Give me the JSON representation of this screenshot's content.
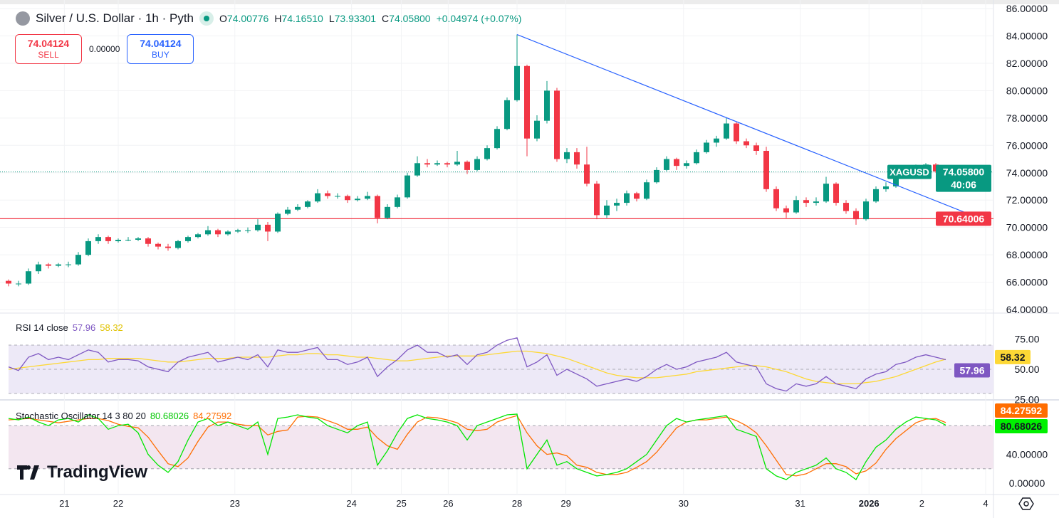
{
  "header": {
    "title": "Silver / U.S. Dollar · 1h · Pyth",
    "open_label": "O",
    "open": "74.00776",
    "high_label": "H",
    "high": "74.16510",
    "low_label": "L",
    "low": "73.93301",
    "close_label": "C",
    "close": "74.05800",
    "change": "+0.04974 (+0.07%)"
  },
  "trade": {
    "sell_price": "74.04124",
    "sell_label": "SELL",
    "spread": "0.00000",
    "buy_price": "74.04124",
    "buy_label": "BUY"
  },
  "price_badge": {
    "symbol": "XAGUSD",
    "price": "74.05800",
    "countdown": "40:06"
  },
  "level_badge": "70.64006",
  "rsi_legend": {
    "name": "RSI 14 close",
    "rsi": "57.96",
    "ma": "58.32"
  },
  "stoch_legend": {
    "name": "Stochastic Oscillator 14 3 80 20",
    "k": "80.68026",
    "d": "84.27592"
  },
  "logo": "TradingView",
  "colors": {
    "up": "#089981",
    "down": "#f23645",
    "trendline": "#2962ff",
    "level": "#f23645",
    "rsi": "#7e57c2",
    "rsi_ma": "#fdd835",
    "stoch_k": "#00e600",
    "stoch_d": "#ff6d00"
  },
  "chart_data": {
    "type": "candlestick",
    "price_axis": {
      "ticks": [
        "86.00000",
        "84.00000",
        "82.00000",
        "80.00000",
        "78.00000",
        "76.00000",
        "74.00000",
        "72.00000",
        "70.00000",
        "68.00000",
        "66.00000",
        "64.00000"
      ],
      "range": [
        64,
        86
      ]
    },
    "x_ticks": [
      "21",
      "22",
      "23",
      "24",
      "25",
      "26",
      "28",
      "29",
      "30",
      "31",
      "2026",
      "2",
      "4"
    ],
    "candles_ohlc": [
      [
        66.1,
        66.2,
        65.7,
        65.9
      ],
      [
        65.9,
        66.1,
        65.7,
        65.9
      ],
      [
        65.9,
        67.0,
        65.8,
        66.8
      ],
      [
        66.8,
        67.5,
        66.6,
        67.3
      ],
      [
        67.3,
        67.4,
        67.0,
        67.2
      ],
      [
        67.2,
        67.4,
        67.1,
        67.3
      ],
      [
        67.3,
        67.5,
        67.1,
        67.3
      ],
      [
        67.3,
        68.2,
        67.2,
        68.0
      ],
      [
        68.0,
        69.2,
        67.9,
        69.0
      ],
      [
        69.0,
        69.5,
        68.8,
        69.3
      ],
      [
        69.3,
        69.4,
        68.8,
        69.0
      ],
      [
        69.0,
        69.2,
        68.9,
        69.1
      ],
      [
        69.1,
        69.3,
        69.0,
        69.1
      ],
      [
        69.1,
        69.3,
        69.0,
        69.2
      ],
      [
        69.2,
        69.3,
        68.6,
        68.8
      ],
      [
        68.8,
        68.9,
        68.4,
        68.6
      ],
      [
        68.6,
        68.8,
        68.3,
        68.5
      ],
      [
        68.5,
        69.1,
        68.4,
        69.0
      ],
      [
        69.0,
        69.4,
        68.9,
        69.3
      ],
      [
        69.3,
        69.6,
        69.2,
        69.5
      ],
      [
        69.5,
        70.1,
        69.4,
        69.8
      ],
      [
        69.8,
        69.9,
        69.3,
        69.5
      ],
      [
        69.5,
        69.8,
        69.4,
        69.7
      ],
      [
        69.7,
        69.9,
        69.6,
        69.8
      ],
      [
        69.8,
        70.0,
        69.6,
        69.8
      ],
      [
        69.8,
        70.6,
        69.7,
        70.2
      ],
      [
        70.2,
        70.4,
        69.0,
        69.7
      ],
      [
        69.7,
        71.1,
        69.6,
        71.0
      ],
      [
        71.0,
        71.5,
        70.9,
        71.3
      ],
      [
        71.3,
        71.7,
        71.2,
        71.5
      ],
      [
        71.5,
        72.0,
        71.4,
        71.9
      ],
      [
        71.9,
        72.8,
        71.8,
        72.5
      ],
      [
        72.5,
        72.7,
        72.1,
        72.3
      ],
      [
        72.3,
        72.5,
        72.1,
        72.3
      ],
      [
        72.3,
        72.4,
        71.8,
        72.0
      ],
      [
        72.0,
        72.3,
        71.9,
        72.1
      ],
      [
        72.1,
        72.6,
        72.0,
        72.3
      ],
      [
        72.3,
        72.4,
        70.3,
        70.7
      ],
      [
        70.7,
        71.7,
        70.6,
        71.5
      ],
      [
        71.5,
        72.4,
        71.4,
        72.2
      ],
      [
        72.2,
        74.0,
        72.1,
        73.8
      ],
      [
        73.8,
        75.2,
        73.7,
        74.7
      ],
      [
        74.7,
        75.0,
        74.4,
        74.6
      ],
      [
        74.6,
        74.9,
        74.5,
        74.7
      ],
      [
        74.7,
        74.8,
        74.4,
        74.6
      ],
      [
        74.6,
        75.6,
        74.5,
        74.8
      ],
      [
        74.8,
        74.9,
        73.9,
        74.2
      ],
      [
        74.2,
        75.2,
        74.1,
        75.0
      ],
      [
        75.0,
        76.0,
        74.9,
        75.8
      ],
      [
        75.8,
        77.4,
        75.7,
        77.2
      ],
      [
        77.2,
        79.5,
        77.1,
        79.3
      ],
      [
        79.3,
        84.1,
        79.2,
        81.8
      ],
      [
        81.8,
        81.9,
        75.2,
        76.5
      ],
      [
        76.5,
        78.2,
        76.3,
        77.8
      ],
      [
        77.8,
        80.7,
        77.6,
        80.0
      ],
      [
        80.0,
        80.2,
        74.8,
        75.0
      ],
      [
        75.0,
        75.8,
        74.7,
        75.5
      ],
      [
        75.5,
        75.8,
        74.3,
        74.6
      ],
      [
        74.6,
        75.9,
        73.0,
        73.2
      ],
      [
        73.2,
        73.4,
        70.6,
        70.9
      ],
      [
        70.9,
        72.0,
        70.7,
        71.6
      ],
      [
        71.6,
        72.1,
        71.2,
        71.8
      ],
      [
        71.8,
        72.7,
        71.6,
        72.5
      ],
      [
        72.5,
        72.6,
        71.9,
        72.1
      ],
      [
        72.1,
        73.5,
        72.0,
        73.3
      ],
      [
        73.3,
        74.4,
        73.2,
        74.2
      ],
      [
        74.2,
        75.2,
        74.1,
        75.0
      ],
      [
        75.0,
        75.1,
        74.2,
        74.5
      ],
      [
        74.5,
        74.9,
        74.3,
        74.7
      ],
      [
        74.7,
        75.7,
        74.6,
        75.5
      ],
      [
        75.5,
        76.4,
        75.4,
        76.2
      ],
      [
        76.2,
        76.7,
        75.9,
        76.5
      ],
      [
        76.5,
        78.0,
        76.4,
        77.6
      ],
      [
        77.6,
        77.7,
        76.1,
        76.3
      ],
      [
        76.3,
        76.5,
        75.8,
        76.0
      ],
      [
        76.0,
        76.2,
        75.3,
        75.6
      ],
      [
        75.6,
        75.9,
        72.6,
        72.8
      ],
      [
        72.8,
        73.0,
        71.2,
        71.4
      ],
      [
        71.4,
        71.6,
        70.7,
        71.1
      ],
      [
        71.1,
        72.3,
        71.0,
        72.0
      ],
      [
        72.0,
        72.2,
        71.5,
        71.8
      ],
      [
        71.8,
        72.2,
        71.6,
        71.9
      ],
      [
        71.9,
        73.7,
        71.8,
        73.2
      ],
      [
        73.2,
        73.3,
        71.6,
        71.8
      ],
      [
        71.8,
        72.0,
        71.0,
        71.2
      ],
      [
        71.2,
        71.4,
        70.2,
        70.6
      ],
      [
        70.6,
        72.1,
        70.5,
        71.9
      ],
      [
        71.9,
        73.0,
        71.8,
        72.8
      ],
      [
        72.8,
        73.3,
        72.6,
        73.0
      ],
      [
        73.0,
        74.0,
        72.9,
        73.8
      ],
      [
        73.8,
        74.3,
        73.7,
        74.1
      ],
      [
        74.1,
        74.6,
        74.0,
        74.4
      ],
      [
        74.4,
        74.7,
        74.3,
        74.6
      ],
      [
        74.6,
        74.7,
        74.0,
        74.1
      ],
      [
        74.1,
        74.17,
        73.93,
        74.06
      ]
    ],
    "last_price": 74.058,
    "horizontal_level": 70.64006,
    "trendline": {
      "from_price": 84.1,
      "to_price": 71.1
    },
    "rsi": {
      "ticks": [
        "75.00",
        "50.00",
        "25.00"
      ],
      "bands": [
        70,
        30
      ],
      "values": [
        52,
        49,
        60,
        63,
        58,
        60,
        58,
        62,
        66,
        64,
        56,
        58,
        58,
        57,
        52,
        50,
        48,
        56,
        60,
        62,
        64,
        56,
        58,
        60,
        58,
        62,
        52,
        66,
        64,
        64,
        66,
        68,
        58,
        58,
        54,
        56,
        60,
        44,
        52,
        58,
        66,
        70,
        64,
        64,
        60,
        62,
        54,
        62,
        64,
        70,
        74,
        76,
        52,
        56,
        62,
        45,
        50,
        46,
        42,
        36,
        38,
        40,
        42,
        40,
        44,
        50,
        54,
        50,
        52,
        56,
        58,
        60,
        64,
        56,
        54,
        52,
        38,
        34,
        32,
        38,
        36,
        38,
        44,
        38,
        36,
        34,
        42,
        46,
        48,
        54,
        56,
        60,
        62,
        60,
        57.96
      ],
      "ma": [
        50,
        51,
        52,
        53,
        54,
        55,
        56,
        57,
        58,
        58,
        59,
        59,
        59,
        59,
        58,
        57,
        56,
        56,
        57,
        58,
        59,
        59,
        59,
        60,
        60,
        60,
        60,
        61,
        62,
        62,
        63,
        63,
        62,
        62,
        61,
        60,
        60,
        59,
        58,
        57,
        57,
        58,
        59,
        60,
        61,
        61,
        61,
        61,
        62,
        63,
        64,
        65,
        65,
        64,
        63,
        61,
        59,
        56,
        53,
        50,
        47,
        45,
        44,
        43,
        43,
        43,
        44,
        45,
        46,
        48,
        49,
        50,
        51,
        52,
        53,
        53,
        52,
        50,
        48,
        45,
        42,
        40,
        39,
        38,
        38,
        38,
        39,
        40,
        42,
        44,
        47,
        50,
        53,
        56,
        58.32
      ]
    },
    "stochastic": {
      "ticks": [
        "40.00000",
        "0.00000"
      ],
      "bands": [
        80,
        20
      ],
      "k": [
        90,
        88,
        92,
        85,
        80,
        88,
        90,
        85,
        95,
        90,
        75,
        80,
        82,
        70,
        40,
        25,
        15,
        30,
        60,
        85,
        90,
        80,
        85,
        80,
        75,
        85,
        40,
        90,
        92,
        95,
        92,
        90,
        80,
        75,
        70,
        80,
        85,
        25,
        45,
        70,
        90,
        95,
        90,
        88,
        85,
        80,
        60,
        80,
        85,
        90,
        95,
        96,
        20,
        40,
        60,
        25,
        30,
        20,
        15,
        10,
        12,
        15,
        20,
        30,
        40,
        60,
        80,
        90,
        85,
        88,
        90,
        92,
        94,
        75,
        70,
        65,
        20,
        10,
        5,
        15,
        20,
        25,
        35,
        20,
        15,
        5,
        30,
        50,
        60,
        75,
        85,
        92,
        90,
        88,
        80.68
      ],
      "d": [
        88,
        89,
        90,
        88,
        86,
        84,
        86,
        88,
        90,
        90,
        87,
        82,
        79,
        77,
        64,
        45,
        27,
        23,
        35,
        58,
        78,
        85,
        85,
        82,
        80,
        80,
        67,
        72,
        74,
        92,
        93,
        92,
        87,
        82,
        75,
        75,
        78,
        63,
        52,
        47,
        68,
        85,
        92,
        91,
        88,
        84,
        75,
        73,
        75,
        85,
        90,
        94,
        70,
        52,
        40,
        42,
        38,
        25,
        22,
        15,
        12,
        12,
        15,
        22,
        30,
        43,
        60,
        77,
        85,
        88,
        88,
        90,
        92,
        87,
        80,
        70,
        52,
        32,
        12,
        10,
        13,
        20,
        27,
        27,
        23,
        13,
        17,
        28,
        47,
        62,
        73,
        84,
        89,
        90,
        84.28
      ]
    }
  }
}
